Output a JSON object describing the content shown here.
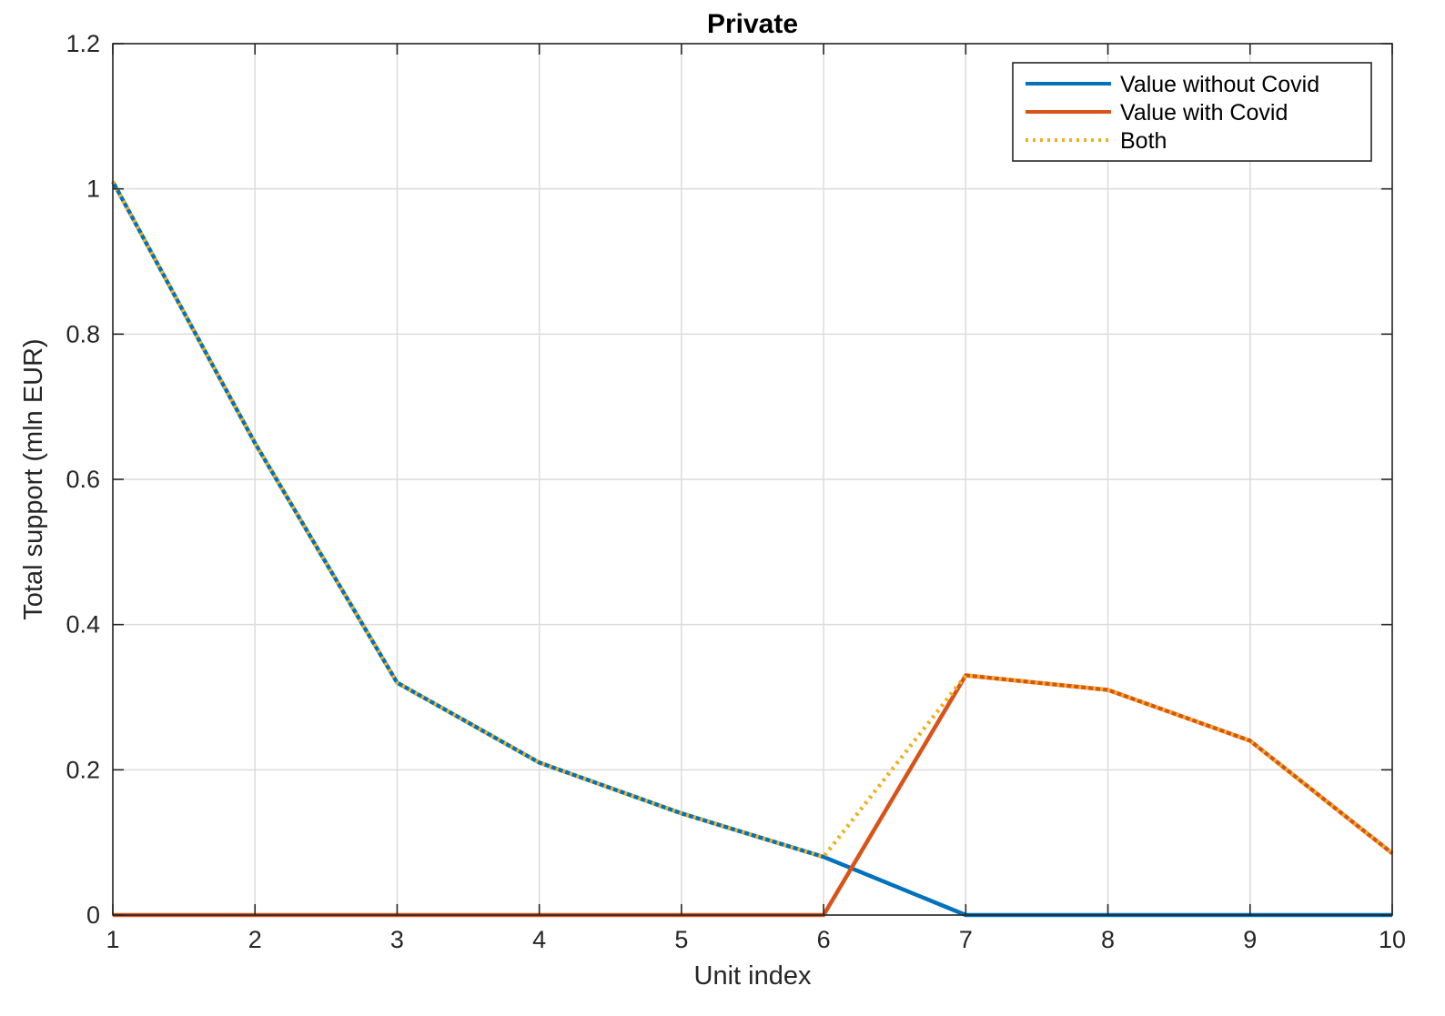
{
  "chart_data": {
    "type": "line",
    "title": "Private",
    "xlabel": "Unit index",
    "ylabel": "Total support (mln EUR)",
    "xlim": [
      1,
      10
    ],
    "ylim": [
      0,
      1.2
    ],
    "x_ticks": [
      "1",
      "2",
      "3",
      "4",
      "5",
      "6",
      "7",
      "8",
      "9",
      "10"
    ],
    "y_ticks": [
      "0",
      "0.2",
      "0.4",
      "0.6",
      "0.8",
      "1",
      "1.2"
    ],
    "grid": true,
    "legend_position": "top-right",
    "x": [
      1,
      2,
      3,
      4,
      5,
      6,
      7,
      8,
      9,
      10
    ],
    "series": [
      {
        "name": "Value without Covid",
        "color": "#0072bd",
        "style": "solid",
        "values": [
          1.01,
          0.65,
          0.32,
          0.21,
          0.14,
          0.08,
          0.0,
          0.0,
          0.0,
          0.0
        ]
      },
      {
        "name": "Value with Covid",
        "color": "#d95319",
        "style": "solid",
        "values": [
          0.0,
          0.0,
          0.0,
          0.0,
          0.0,
          0.0,
          0.33,
          0.31,
          0.24,
          0.085
        ]
      },
      {
        "name": "Both",
        "color": "#edb120",
        "style": "dotted",
        "values": [
          1.01,
          0.65,
          0.32,
          0.21,
          0.14,
          0.08,
          0.33,
          0.31,
          0.24,
          0.085
        ]
      }
    ]
  }
}
